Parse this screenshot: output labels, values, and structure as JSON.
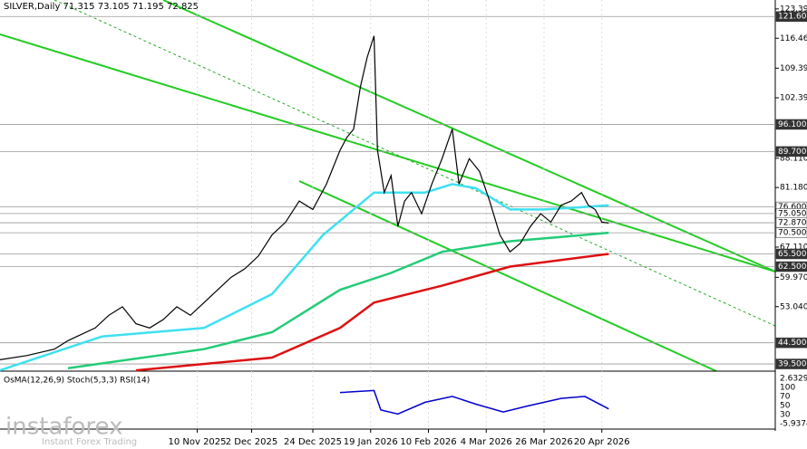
{
  "chart_data": {
    "type": "line",
    "title": "SILVER,Daily  71.315 73.105 71.195 72.825",
    "xlim": [
      0,
      228
    ],
    "ylim": [
      37.8,
      125.5
    ],
    "xticks": [
      {
        "value": 58,
        "label": "10 Nov 2025"
      },
      {
        "value": 74,
        "label": "2 Dec 2025"
      },
      {
        "value": 92,
        "label": "24 Dec 2025"
      },
      {
        "value": 109,
        "label": "19 Jan 2026"
      },
      {
        "value": 126,
        "label": "10 Feb 2026"
      },
      {
        "value": 143,
        "label": "4 Mar 2026"
      },
      {
        "value": 160,
        "label": "26 Mar 2026"
      },
      {
        "value": 177,
        "label": "20 Apr 2026"
      }
    ],
    "yticks": [
      {
        "value": 123.39,
        "label": "123.390"
      },
      {
        "value": 116.46,
        "label": "116.460"
      },
      {
        "value": 109.39,
        "label": "109.390"
      },
      {
        "value": 102.39,
        "label": "102.390"
      },
      {
        "value": 88.11,
        "label": "88.110"
      },
      {
        "value": 81.18,
        "label": "81.180"
      },
      {
        "value": 67.11,
        "label": "67.110"
      },
      {
        "value": 59.97,
        "label": "59.970"
      },
      {
        "value": 53.04,
        "label": "53.040"
      }
    ],
    "series": [
      {
        "color": "#000000",
        "x": [
          0,
          8,
          16,
          20,
          28,
          32,
          36,
          40,
          44,
          48,
          52,
          56,
          60,
          64,
          68,
          72,
          76,
          80,
          84,
          88,
          92,
          96,
          100,
          102,
          104,
          106,
          108,
          110,
          111,
          113,
          115,
          117,
          119,
          121,
          124,
          127,
          130,
          133,
          135,
          138,
          141,
          144,
          147,
          150,
          153,
          156,
          159,
          162,
          165,
          168,
          171,
          173,
          175,
          177,
          179
        ],
        "values": [
          40.5,
          41.5,
          43,
          45,
          48,
          51,
          53,
          49,
          48,
          50,
          53,
          51,
          54,
          57,
          60,
          62,
          65,
          70,
          73,
          78,
          76,
          82,
          90,
          93,
          95,
          105,
          112,
          117,
          90,
          80,
          84,
          72,
          78,
          80,
          75,
          82,
          88,
          95,
          82,
          88,
          85,
          78,
          70,
          66,
          68,
          72,
          75,
          73,
          77,
          78,
          80,
          77,
          76,
          73,
          72.8
        ]
      },
      {
        "color": "#3fe0f0",
        "x": [
          0,
          30,
          60,
          80,
          95,
          110,
          125,
          133,
          140,
          150,
          160,
          170,
          179
        ],
        "values": [
          38,
          46,
          48,
          56,
          70,
          80,
          80,
          82,
          81,
          76,
          76,
          76.5,
          77
        ]
      },
      {
        "color": "#22cc77",
        "x": [
          20,
          60,
          80,
          100,
          115,
          130,
          150,
          165,
          179
        ],
        "values": [
          38.5,
          43,
          47,
          57,
          61,
          66,
          68.5,
          69.5,
          70.5
        ]
      },
      {
        "color": "#dd1111",
        "x": [
          40,
          80,
          100,
          110,
          130,
          150,
          179
        ],
        "values": [
          38,
          41,
          48,
          54,
          58,
          62.5,
          65.5
        ]
      }
    ],
    "levels": [
      {
        "value": 121.6,
        "label": "121.600",
        "color": "#333333"
      },
      {
        "value": 96.1,
        "label": "96.100",
        "color": "#333333"
      },
      {
        "value": 89.7,
        "label": "89.700",
        "color": "#333333"
      },
      {
        "value": 76.6,
        "label": "76.600",
        "color": "#ffffff"
      },
      {
        "value": 75.05,
        "label": "75.050",
        "color": "#ffffff"
      },
      {
        "value": 72.87,
        "label": "72.870",
        "color": "#ffffff"
      },
      {
        "value": 70.5,
        "label": "70.500",
        "color": "#ffffff"
      },
      {
        "value": 65.5,
        "label": "65.500",
        "color": "#333333"
      },
      {
        "value": 62.5,
        "label": "62.500",
        "color": "#333333"
      },
      {
        "value": 44.5,
        "label": "44.500",
        "color": "#333333"
      },
      {
        "value": 39.5,
        "label": "39.500",
        "color": "#333333"
      }
    ],
    "oscillator": {
      "title": "OsMA(12,26,9)  Stoch(5,3,3)  RSI(14)",
      "ylim": [
        0,
        100
      ],
      "axis_labels": [
        "2.6329",
        "100",
        "70",
        "50",
        "30",
        "-5.9374"
      ],
      "x": [
        100,
        110,
        112,
        117,
        125,
        133,
        140,
        148,
        155,
        165,
        172,
        179
      ],
      "values": [
        80,
        85,
        35,
        25,
        55,
        70,
        50,
        30,
        45,
        65,
        70,
        38
      ],
      "color": "#0000cc"
    },
    "watermark": "instaforex",
    "watermark_sub": "Instant Forex Trading"
  }
}
